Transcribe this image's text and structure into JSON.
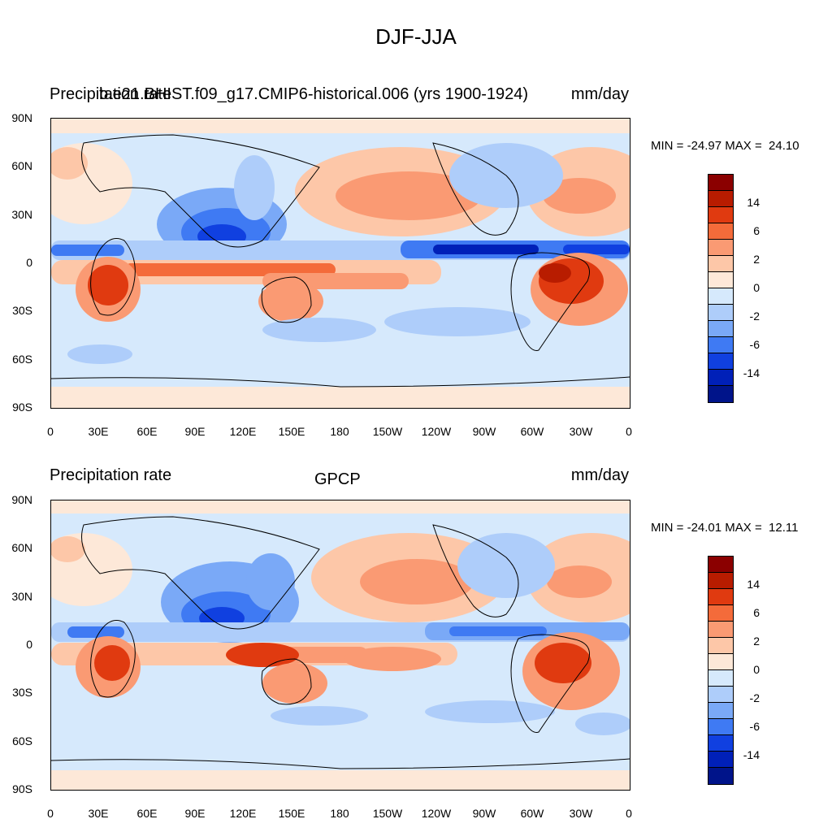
{
  "title": "DJF-JJA",
  "panels": [
    {
      "left_label": "Precipitation rate",
      "center_label": "b.e21.BHIST.f09_g17.CMIP6-historical.006 (yrs 1900-1924)",
      "right_label": "mm/day",
      "stats": "MIN = -24.97 MAX =  24.10"
    },
    {
      "left_label": "Precipitation rate",
      "center_label": "GPCP",
      "right_label": "mm/day",
      "stats": "MIN = -24.01 MAX =  12.11"
    }
  ],
  "lat_ticks": [
    "90N",
    "60N",
    "30N",
    "0",
    "30S",
    "60S",
    "90S"
  ],
  "lon_ticks": [
    "0",
    "30E",
    "60E",
    "90E",
    "120E",
    "150E",
    "180",
    "150W",
    "120W",
    "90W",
    "60W",
    "30W",
    "0"
  ],
  "colorbar": {
    "labels": [
      "14",
      "6",
      "2",
      "0",
      "-2",
      "-6",
      "-14"
    ],
    "colors": [
      "#8b0000",
      "#b81c00",
      "#e03a10",
      "#f46b3a",
      "#fa9a73",
      "#fdc7a8",
      "#fde8d8",
      "#d6e9fc",
      "#aecdfa",
      "#7aa9f7",
      "#3f7af3",
      "#1040e0",
      "#0020b8",
      "#00148a"
    ]
  }
}
